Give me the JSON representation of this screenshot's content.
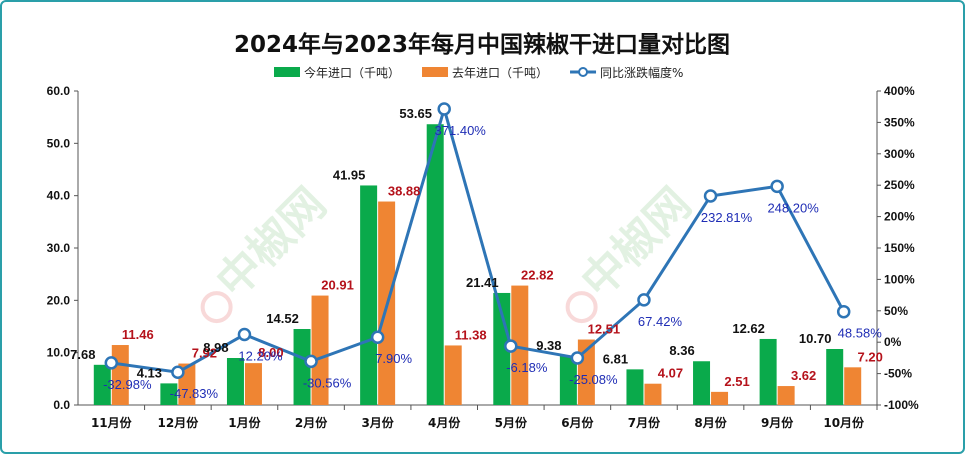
{
  "chart_data": {
    "type": "bar",
    "title": "2024年与2023年每月中国辣椒干进口量对比图",
    "categories": [
      "11月份",
      "12月份",
      "1月份",
      "2月份",
      "3月份",
      "4月份",
      "5月份",
      "6月份",
      "7月份",
      "8月份",
      "9月份",
      "10月份"
    ],
    "series": [
      {
        "name": "今年进口（千吨）",
        "kind": "bar",
        "color": "#0aaa4b",
        "axis": "left",
        "values": [
          7.68,
          4.13,
          8.98,
          14.52,
          41.95,
          53.65,
          21.41,
          9.38,
          6.81,
          8.36,
          12.62,
          10.7
        ],
        "labels": [
          "7.68",
          "4.13",
          "8.98",
          "14.52",
          "41.95",
          "53.65",
          "21.41",
          "9.38",
          "6.81",
          "8.36",
          "12.62",
          "10.70"
        ]
      },
      {
        "name": "去年进口（千吨）",
        "kind": "bar",
        "color": "#ef8533",
        "axis": "left",
        "values": [
          11.46,
          7.92,
          8.0,
          20.91,
          38.88,
          11.38,
          22.82,
          12.51,
          4.07,
          2.51,
          3.62,
          7.2
        ],
        "labels": [
          "11.46",
          "7.92",
          "8.00",
          "20.91",
          "38.88",
          "11.38",
          "22.82",
          "12.51",
          "4.07",
          "2.51",
          "3.62",
          "7.20"
        ]
      },
      {
        "name": "同比涨跌幅度%",
        "kind": "line",
        "color": "#2e75b6",
        "axis": "right",
        "values": [
          -32.98,
          -47.83,
          12.2,
          -30.56,
          7.9,
          371.4,
          -6.18,
          -25.08,
          67.42,
          232.81,
          248.2,
          48.58
        ],
        "labels": [
          "-32.98%",
          "-47.83%",
          "12.20%",
          "-30.56%",
          "7.90%",
          "371.40%",
          "-6.18%",
          "-25.08%",
          "67.42%",
          "232.81%",
          "248.20%",
          "48.58%"
        ]
      }
    ],
    "y_left": {
      "min": 0,
      "max": 60,
      "step": 10,
      "ticks": [
        "0.0",
        "10.0",
        "20.0",
        "30.0",
        "40.0",
        "50.0",
        "60.0"
      ]
    },
    "y_right": {
      "min": -100,
      "max": 400,
      "step": 50,
      "ticks": [
        "-100%",
        "-50%",
        "0%",
        "50%",
        "100%",
        "150%",
        "200%",
        "250%",
        "300%",
        "350%",
        "400%"
      ]
    },
    "legend_position": "top-center",
    "grid": false,
    "watermark": "中椒网"
  }
}
